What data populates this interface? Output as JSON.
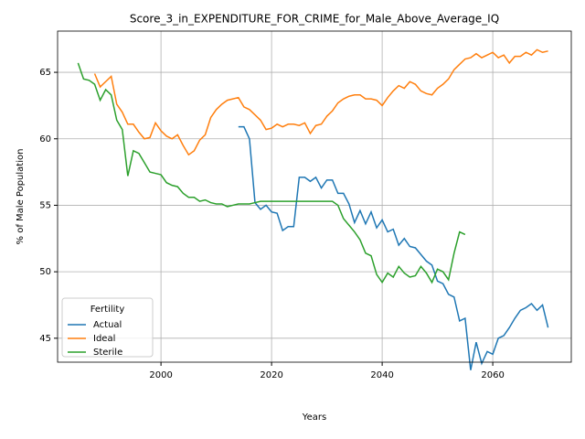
{
  "chart_data": {
    "type": "line",
    "title": "Score_3_in_EXPENDITURE_FOR_CRIME_for_Male_Above_Average_IQ",
    "x_label": "Years",
    "y_label": "% of Male Population",
    "x": [
      1985,
      1986,
      1987,
      1988,
      1989,
      1990,
      1991,
      1992,
      1993,
      1994,
      1995,
      1996,
      1997,
      1998,
      1999,
      2000,
      2001,
      2002,
      2003,
      2004,
      2005,
      2006,
      2007,
      2008,
      2009,
      2010,
      2011,
      2012,
      2013,
      2014,
      2015,
      2016,
      2017,
      2018,
      2019,
      2020,
      2021,
      2022,
      2023,
      2024,
      2025,
      2026,
      2027,
      2028,
      2029,
      2030,
      2031,
      2032,
      2033,
      2034,
      2035,
      2036,
      2037,
      2038,
      2039,
      2040,
      2041,
      2042,
      2043,
      2044,
      2045,
      2046,
      2047,
      2048,
      2049,
      2050,
      2051,
      2052,
      2053,
      2054,
      2055,
      2056,
      2057,
      2058,
      2059,
      2060,
      2061,
      2062,
      2063,
      2064,
      2065,
      2066,
      2067,
      2068,
      2069,
      2070
    ],
    "series": [
      {
        "name": "Actual",
        "color": "#1f77b4",
        "values": [
          null,
          null,
          null,
          null,
          null,
          null,
          null,
          null,
          null,
          null,
          null,
          null,
          null,
          null,
          null,
          null,
          null,
          null,
          null,
          null,
          null,
          null,
          null,
          null,
          null,
          null,
          null,
          null,
          null,
          60.9,
          60.9,
          60.0,
          55.2,
          54.7,
          55.0,
          54.5,
          54.4,
          53.1,
          53.4,
          53.4,
          57.1,
          57.1,
          56.8,
          57.1,
          56.3,
          56.9,
          56.9,
          55.9,
          55.9,
          55.1,
          53.7,
          54.6,
          53.6,
          54.5,
          53.3,
          53.9,
          53.0,
          53.2,
          52.0,
          52.5,
          51.9,
          51.8,
          51.3,
          50.8,
          50.5,
          49.3,
          49.1,
          48.3,
          48.1,
          46.3,
          46.5,
          42.6,
          44.7,
          43.1,
          44.0,
          43.8,
          45.0,
          45.2,
          45.8,
          46.5,
          47.1,
          47.3,
          47.6,
          47.1,
          47.5,
          45.8
        ]
      },
      {
        "name": "Ideal",
        "color": "#ff7f0e",
        "values": [
          null,
          null,
          null,
          64.9,
          63.9,
          64.3,
          64.7,
          62.6,
          62.0,
          61.1,
          61.1,
          60.5,
          60.0,
          60.1,
          61.2,
          60.6,
          60.2,
          60.0,
          60.3,
          59.5,
          58.8,
          59.1,
          59.9,
          60.3,
          61.6,
          62.2,
          62.6,
          62.9,
          63.0,
          63.1,
          62.4,
          62.2,
          61.8,
          61.4,
          60.7,
          60.8,
          61.1,
          60.9,
          61.1,
          61.1,
          61.0,
          61.2,
          60.4,
          61.0,
          61.1,
          61.7,
          62.1,
          62.7,
          63.0,
          63.2,
          63.3,
          63.3,
          63.0,
          63.0,
          62.9,
          62.5,
          63.1,
          63.6,
          64.0,
          63.8,
          64.3,
          64.1,
          63.6,
          63.4,
          63.3,
          63.8,
          64.1,
          64.5,
          65.2,
          65.6,
          66.0,
          66.1,
          66.4,
          66.1,
          66.3,
          66.5,
          66.1,
          66.3,
          65.7,
          66.2,
          66.2,
          66.5,
          66.3,
          66.7,
          66.5,
          66.6
        ]
      },
      {
        "name": "Sterile",
        "color": "#2ca02c",
        "values": [
          65.7,
          64.5,
          64.4,
          64.1,
          62.9,
          63.7,
          63.3,
          61.4,
          60.7,
          57.2,
          59.1,
          58.9,
          58.2,
          57.5,
          57.4,
          57.3,
          56.7,
          56.5,
          56.4,
          55.9,
          55.6,
          55.6,
          55.3,
          55.4,
          55.2,
          55.1,
          55.1,
          54.9,
          55.0,
          55.1,
          55.1,
          55.1,
          55.2,
          55.3,
          55.3,
          55.3,
          55.3,
          55.3,
          55.3,
          55.3,
          55.3,
          55.3,
          55.3,
          55.3,
          55.3,
          55.3,
          55.3,
          55.0,
          54.0,
          53.5,
          53.0,
          52.4,
          51.4,
          51.2,
          49.8,
          49.2,
          49.9,
          49.6,
          50.4,
          49.9,
          49.6,
          49.7,
          50.4,
          49.9,
          49.2,
          50.2,
          50.0,
          49.4,
          51.4,
          53.0,
          52.8,
          null,
          null,
          null,
          null,
          null,
          null,
          null,
          null,
          null,
          null,
          null,
          null,
          null,
          null,
          null
        ]
      }
    ],
    "xlim": [
      1981.3,
      2074.2
    ],
    "ylim": [
      43.2,
      68.1
    ],
    "xticks": [
      2000,
      2020,
      2040,
      2060
    ],
    "yticks": [
      45,
      50,
      55,
      60,
      65
    ],
    "grid": true,
    "legend_title": "Fertility",
    "legend": "lower left"
  }
}
